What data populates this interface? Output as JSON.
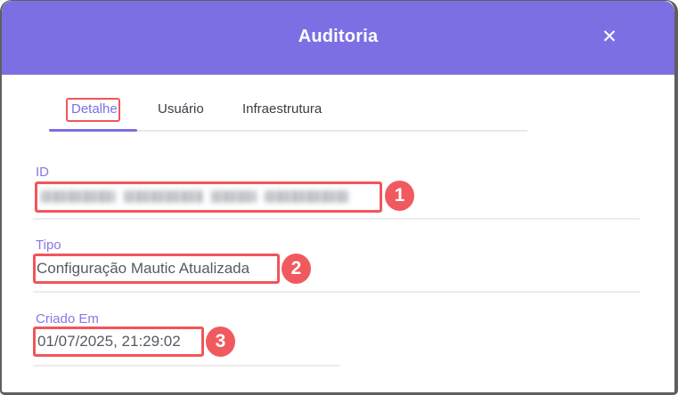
{
  "header": {
    "title": "Auditoria",
    "close_icon": "✕"
  },
  "tabs": {
    "items": [
      {
        "label": "Detalhe",
        "active": true,
        "annotated": true
      },
      {
        "label": "Usuário",
        "active": false
      },
      {
        "label": "Infraestrutura",
        "active": false
      }
    ]
  },
  "fields": {
    "id": {
      "label": "ID",
      "value": "",
      "redacted": true,
      "annotation_number": "1"
    },
    "tipo": {
      "label": "Tipo",
      "value": "Configuração Mautic Atualizada",
      "annotation_number": "2"
    },
    "criado_em": {
      "label": "Criado Em",
      "value": "01/07/2025, 21:29:02",
      "annotation_number": "3"
    }
  },
  "colors": {
    "header_purple": "#7c6fe4",
    "label_purple": "#8579e6",
    "active_tab_purple": "#7b6fe2",
    "annotation_red": "#f2555a",
    "badge_red": "#f05a5e",
    "value_text_gray": "#565b62",
    "divider_gray": "#ececec"
  }
}
